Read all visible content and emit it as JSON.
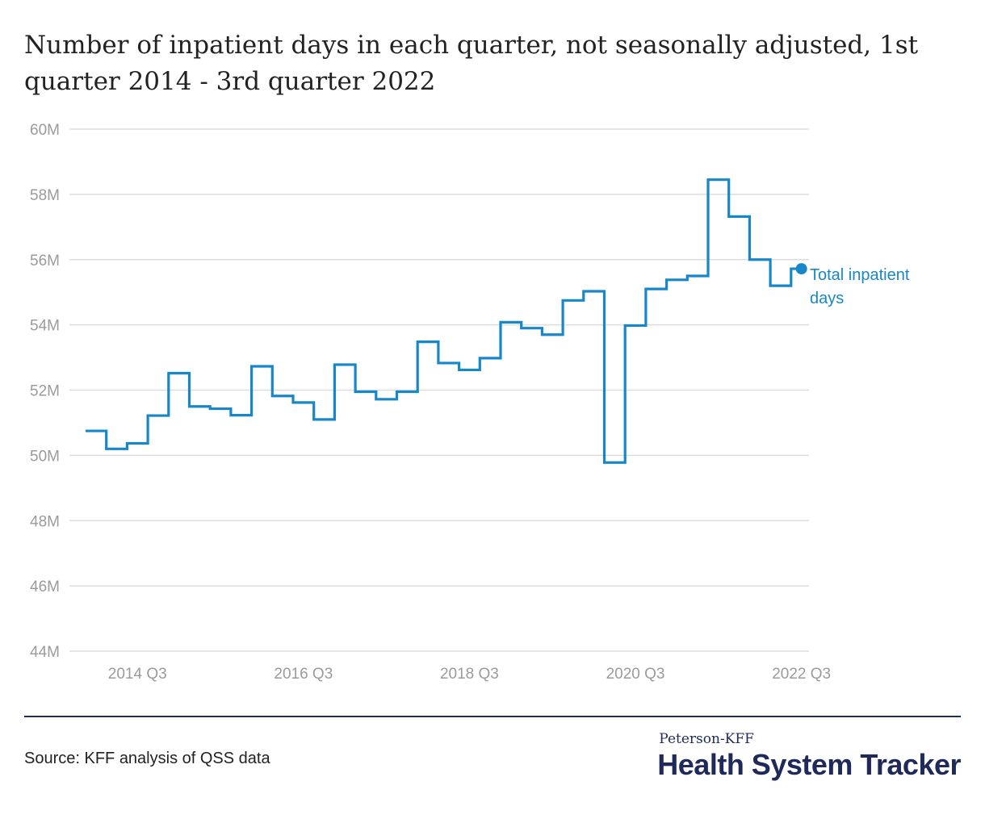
{
  "title": "Number of inpatient days in each quarter, not seasonally adjusted, 1st quarter 2014 - 3rd quarter 2022",
  "source": "Source: KFF analysis of QSS data",
  "logo": {
    "top": "Peterson-KFF",
    "main": "Health System Tracker"
  },
  "colors": {
    "line": "#1787c9",
    "grid": "#dddddd",
    "axis_text": "#9b9b9b",
    "brand": "#1f2a5a"
  },
  "chart_data": {
    "type": "line",
    "step": true,
    "title": "Number of inpatient days in each quarter, not seasonally adjusted, 1st quarter 2014 - 3rd quarter 2022",
    "xlabel": "",
    "ylabel": "",
    "ylim": [
      44,
      60
    ],
    "y_unit": "M",
    "y_ticks": [
      60,
      58,
      56,
      54,
      52,
      50,
      48,
      46,
      44
    ],
    "y_tick_labels": [
      "60M",
      "58M",
      "56M",
      "54M",
      "52M",
      "50M",
      "48M",
      "46M",
      "44M"
    ],
    "x_tick_labels": [
      "2014 Q3",
      "2016 Q3",
      "2018 Q3",
      "2020 Q3",
      "2022 Q3"
    ],
    "x_tick_categories": [
      "2014 Q3",
      "2016 Q3",
      "2018 Q3",
      "2020 Q3",
      "2022 Q3"
    ],
    "grid": true,
    "categories": [
      "2014 Q1",
      "2014 Q2",
      "2014 Q3",
      "2014 Q4",
      "2015 Q1",
      "2015 Q2",
      "2015 Q3",
      "2015 Q4",
      "2016 Q1",
      "2016 Q2",
      "2016 Q3",
      "2016 Q4",
      "2017 Q1",
      "2017 Q2",
      "2017 Q3",
      "2017 Q4",
      "2018 Q1",
      "2018 Q2",
      "2018 Q3",
      "2018 Q4",
      "2019 Q1",
      "2019 Q2",
      "2019 Q3",
      "2019 Q4",
      "2020 Q1",
      "2020 Q2",
      "2020 Q3",
      "2020 Q4",
      "2021 Q1",
      "2021 Q2",
      "2021 Q3",
      "2021 Q4",
      "2022 Q1",
      "2022 Q2",
      "2022 Q3"
    ],
    "series": [
      {
        "name": "Total inpatient days",
        "color": "#1787c9",
        "values": [
          50.75,
          50.2,
          50.37,
          51.22,
          52.52,
          51.5,
          51.43,
          51.23,
          52.73,
          51.82,
          51.62,
          51.1,
          52.78,
          51.95,
          51.72,
          51.95,
          53.48,
          52.83,
          52.62,
          52.98,
          54.08,
          53.9,
          53.7,
          54.75,
          55.03,
          49.78,
          53.98,
          55.1,
          55.38,
          55.5,
          58.45,
          57.32,
          56.0,
          55.2,
          55.72
        ]
      }
    ],
    "annotation": {
      "label_lines": [
        "Total inpatient",
        "days"
      ],
      "series": "Total inpatient days"
    }
  }
}
